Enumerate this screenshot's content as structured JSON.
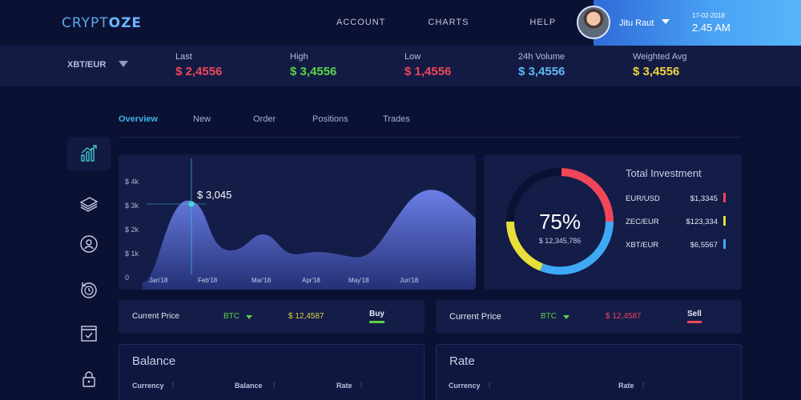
{
  "header": {
    "logo_left": "CRYPT",
    "logo_right": "OZE",
    "nav": [
      "ACCOUNT",
      "CHARTS",
      "HELP"
    ],
    "user_name": "Jitu Raut",
    "date": "17-02-2018",
    "time": "2.45 AM"
  },
  "ticker": {
    "pair": "XBT/EUR",
    "items": [
      {
        "label": "Last",
        "value": "$ 2,4556",
        "color": "#f0465a"
      },
      {
        "label": "High",
        "value": "$ 3,4556",
        "color": "#5ad24a"
      },
      {
        "label": "Low",
        "value": "$ 1,4556",
        "color": "#f0465a"
      },
      {
        "label": "24h Volume",
        "value": "$ 3,4556",
        "color": "#5fb7f5"
      },
      {
        "label": "Weighted Avg",
        "value": "$ 3,4556",
        "color": "#f1d23c"
      }
    ]
  },
  "tabs": [
    "Overview",
    "New",
    "Order",
    "Positions",
    "Trades"
  ],
  "chart": {
    "tooltip": "$ 3,045",
    "y_ticks": [
      "$ 4k",
      "$ 3k",
      "$ 2k",
      "$ 1k",
      "0"
    ],
    "x_ticks": [
      "Jan'18",
      "Feb'18",
      "Mar'18",
      "Apr'18",
      "May'18",
      "Jun'18"
    ]
  },
  "chart_data": {
    "type": "area",
    "x": [
      "Jan'18",
      "Feb'18",
      "Mar'18",
      "Apr'18",
      "May'18",
      "Jun'18"
    ],
    "y_ticks": [
      "$ 4k",
      "$ 3k",
      "$ 2k",
      "$ 1k",
      "0"
    ],
    "ylim": [
      0,
      4000
    ],
    "highlight": {
      "label": "$ 3,045",
      "value": 3045
    }
  },
  "investment": {
    "title": "Total Investment",
    "percent": "75%",
    "amount": "$ 12,345,786",
    "rows": [
      {
        "pair": "EUR/USD",
        "value": "$1,3345",
        "color": "#f0465a"
      },
      {
        "pair": "ZEC/EUR",
        "value": "$123,334",
        "color": "#e8df3a"
      },
      {
        "pair": "XBT/EUR",
        "value": "$6,5567",
        "color": "#3fa9f5"
      }
    ]
  },
  "price_cards": [
    {
      "label": "Current Price",
      "coin": "BTC",
      "price": "$ 12,4587",
      "price_color": "#d9d640",
      "action": "Buy",
      "action_color": "#5ad24a"
    },
    {
      "label": "Current Price",
      "coin": "BTC",
      "price": "$ 12,4587",
      "price_color": "#f0465a",
      "action": "Sell",
      "action_color": "#f0465a"
    }
  ],
  "balance": {
    "title": "Balance",
    "cols": [
      "Currency",
      "Balance",
      "Rate"
    ]
  },
  "rate": {
    "title": "Rate",
    "cols": [
      "Currency",
      "Rate"
    ]
  }
}
